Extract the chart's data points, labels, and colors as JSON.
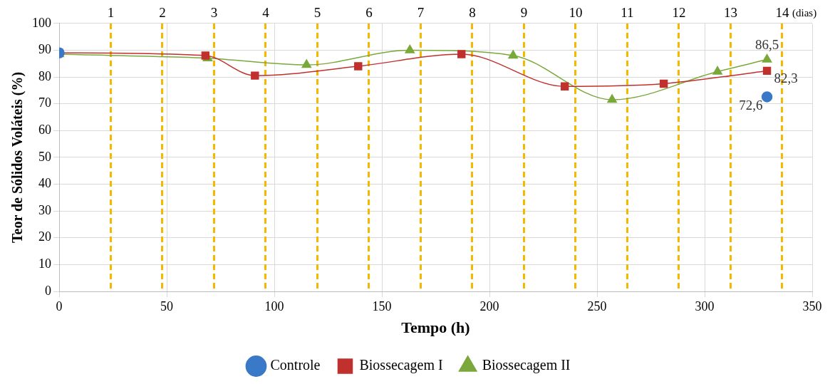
{
  "chart_data": {
    "type": "line",
    "xlabel": "Tempo (h)",
    "ylabel": "Teor de Sólidos Voláteis (%)",
    "xlim": [
      0,
      350
    ],
    "xticks": [
      0,
      50,
      100,
      150,
      200,
      250,
      300,
      350
    ],
    "ylim": [
      0,
      100
    ],
    "yticks": [
      0,
      10,
      20,
      30,
      40,
      50,
      60,
      70,
      80,
      90,
      100
    ],
    "x2lim": [
      0,
      14.58
    ],
    "x2ticks": [
      1,
      2,
      3,
      4,
      5,
      6,
      7,
      8,
      9,
      10,
      11,
      12,
      13,
      14
    ],
    "x2label": "(dias)",
    "grid": true,
    "legend": "bottom",
    "series": [
      {
        "name": "Controle",
        "type": "scatter",
        "marker": "circle",
        "color": "#3a78c8",
        "x": [
          0,
          329
        ],
        "values": [
          89,
          72.6
        ],
        "value_labels": [
          null,
          "72,6"
        ]
      },
      {
        "name": "Biossecagem I",
        "type": "line",
        "marker": "square",
        "color": "#c0302c",
        "x": [
          0,
          68,
          91,
          139,
          187,
          235,
          281,
          329
        ],
        "values": [
          89,
          88,
          80.5,
          84,
          88.5,
          76.5,
          77.5,
          82.3
        ],
        "value_labels": [
          null,
          null,
          null,
          null,
          null,
          null,
          null,
          "82,3"
        ]
      },
      {
        "name": "Biossecagem II",
        "type": "line",
        "marker": "triangle",
        "color": "#7aa83a",
        "x": [
          0,
          69,
          115,
          163,
          211,
          257,
          306,
          329
        ],
        "values": [
          88.5,
          87,
          84.5,
          90,
          88,
          71.5,
          82,
          86.5
        ],
        "value_labels": [
          null,
          null,
          null,
          null,
          null,
          null,
          null,
          "86,5"
        ]
      }
    ]
  }
}
